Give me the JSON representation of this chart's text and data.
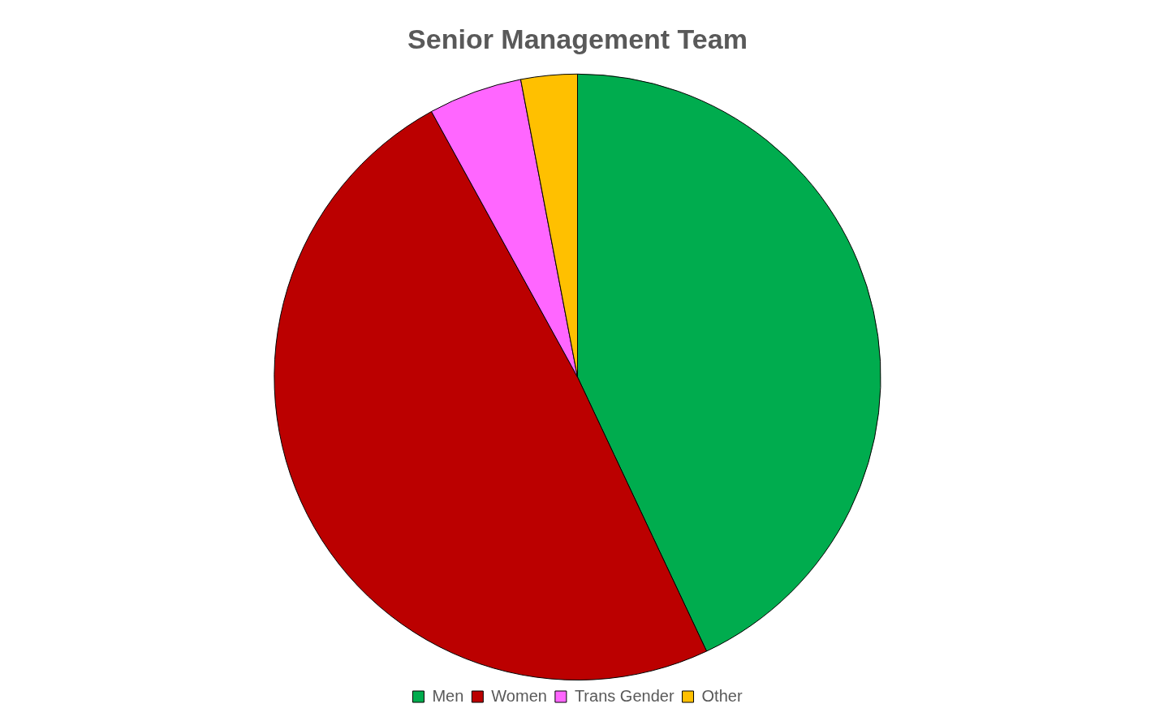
{
  "chart_data": {
    "type": "pie",
    "title": "Senior Management Team",
    "categories": [
      "Men",
      "Women",
      "Trans Gender",
      "Other"
    ],
    "values": [
      43,
      49,
      5,
      3
    ],
    "colors": [
      "#00ac4e",
      "#bb0000",
      "#ff66ff",
      "#ffc000"
    ],
    "legend": "bottom"
  }
}
